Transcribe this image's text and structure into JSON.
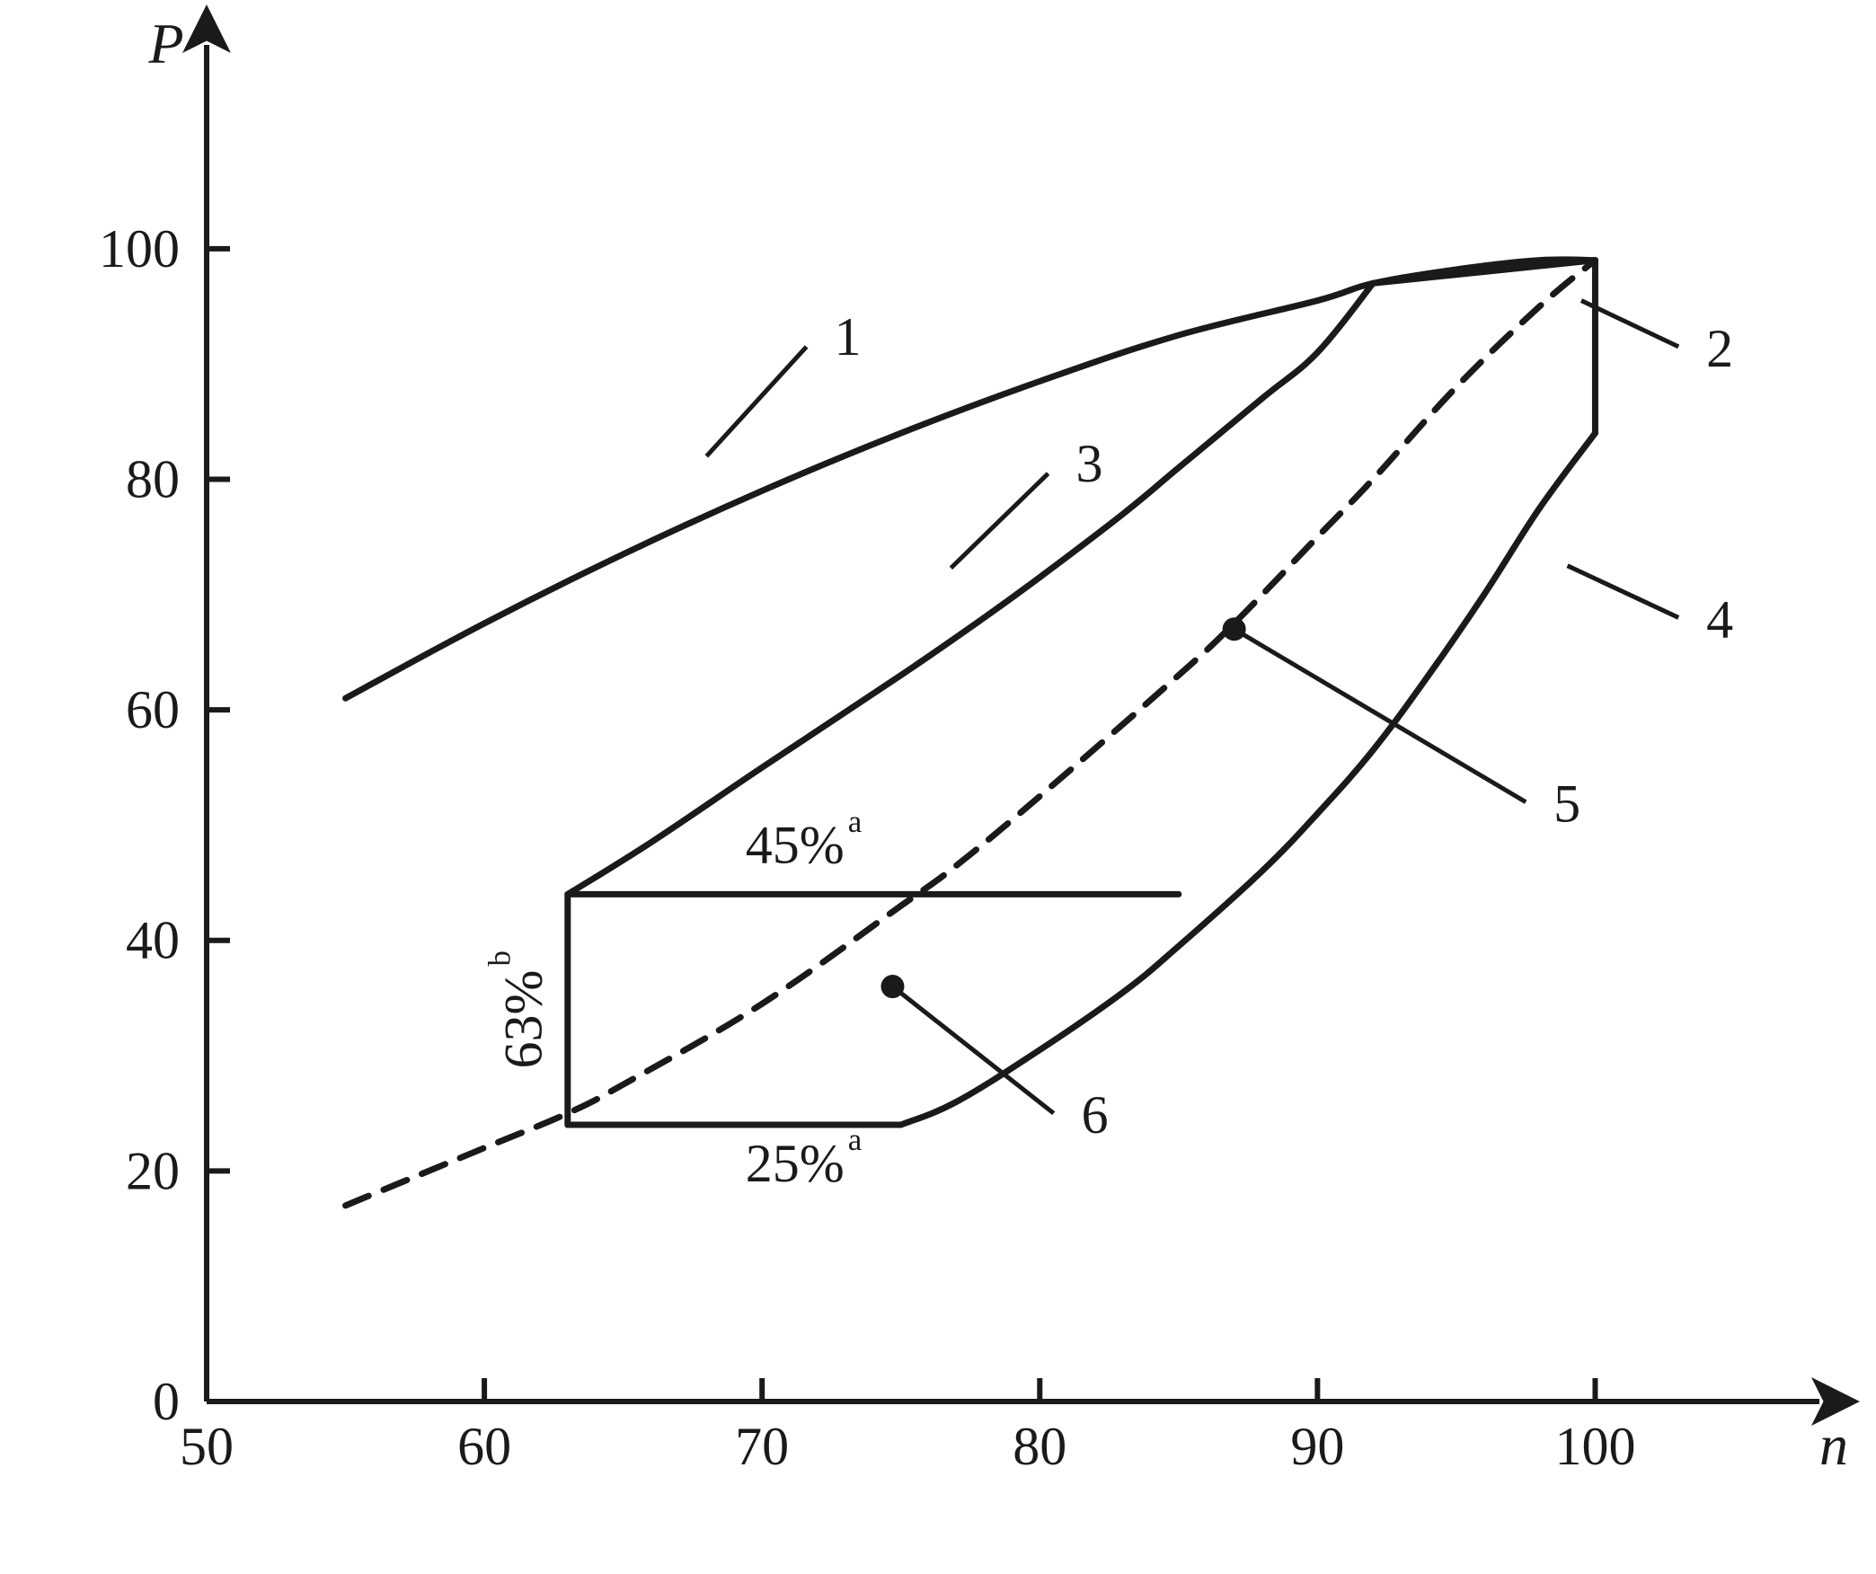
{
  "chart": {
    "type": "line-region",
    "background_color": "#ffffff",
    "stroke_color": "#1a1a1a",
    "axis_stroke_width": 6,
    "curve_stroke_width": 7,
    "font_family": "Times New Roman",
    "tick_font_size": 60,
    "axis_label_font_size": 64,
    "annotation_font_size": 60,
    "x_axis": {
      "label": "n",
      "min": 50,
      "max": 105,
      "ticks": [
        50,
        60,
        70,
        80,
        90,
        100
      ]
    },
    "y_axis": {
      "label": "P",
      "min": 0,
      "max": 113,
      "ticks": [
        0,
        20,
        40,
        60,
        80,
        100
      ]
    },
    "curves": {
      "curve1": {
        "dash": "none",
        "points": [
          [
            55,
            61
          ],
          [
            60,
            67.5
          ],
          [
            65,
            73.5
          ],
          [
            70,
            79
          ],
          [
            75,
            84
          ],
          [
            80,
            88.5
          ],
          [
            85,
            92.5
          ],
          [
            90,
            95.5
          ],
          [
            92,
            97
          ],
          [
            95,
            98.2
          ],
          [
            98,
            99
          ],
          [
            100,
            99
          ]
        ]
      },
      "curve2": {
        "dash": "28 18",
        "points": [
          [
            55,
            17
          ],
          [
            60,
            22
          ],
          [
            63,
            25
          ],
          [
            65,
            27.5
          ],
          [
            70,
            34.5
          ],
          [
            75,
            43
          ],
          [
            77,
            46.5
          ],
          [
            80,
            52.5
          ],
          [
            85,
            63
          ],
          [
            87,
            67.5
          ],
          [
            90,
            75
          ],
          [
            92,
            80
          ],
          [
            95,
            88
          ],
          [
            98,
            95
          ],
          [
            100,
            99
          ]
        ]
      },
      "curve3": {
        "dash": "none",
        "points": [
          [
            63,
            44
          ],
          [
            66,
            48.5
          ],
          [
            70,
            55
          ],
          [
            75,
            63
          ],
          [
            78,
            68
          ],
          [
            80,
            71.5
          ],
          [
            83,
            77
          ],
          [
            85,
            81
          ],
          [
            88,
            87
          ],
          [
            90,
            91
          ],
          [
            92,
            97
          ]
        ]
      },
      "curve4": {
        "dash": "none",
        "points": [
          [
            75,
            24
          ],
          [
            77,
            26
          ],
          [
            80,
            30.5
          ],
          [
            83,
            35.5
          ],
          [
            85,
            39.5
          ],
          [
            88,
            46
          ],
          [
            90,
            51
          ],
          [
            92,
            56.5
          ],
          [
            94,
            63
          ],
          [
            96,
            70
          ],
          [
            98,
            77.5
          ],
          [
            100,
            84
          ]
        ]
      },
      "box_top": {
        "dash": "none",
        "points": [
          [
            63,
            44
          ],
          [
            85,
            44
          ]
        ]
      },
      "box_left": {
        "dash": "none",
        "points": [
          [
            63,
            24
          ],
          [
            63,
            44
          ]
        ]
      },
      "box_bottom": {
        "dash": "none",
        "points": [
          [
            63,
            24
          ],
          [
            75,
            24
          ]
        ]
      },
      "right_edge": {
        "dash": "none",
        "points": [
          [
            100,
            84
          ],
          [
            100,
            99
          ]
        ]
      },
      "top_close": {
        "dash": "none",
        "points": [
          [
            92,
            97
          ],
          [
            100,
            99
          ]
        ]
      }
    },
    "leaders": {
      "l1": {
        "from": [
          68,
          82
        ],
        "to": [
          71.6,
          91.5
        ]
      },
      "l2": {
        "from": [
          99.5,
          95.5
        ],
        "to": [
          103,
          91.5
        ]
      },
      "l3": {
        "from": [
          76.8,
          72.3
        ],
        "to": [
          80.3,
          80.5
        ]
      },
      "l4": {
        "from": [
          99,
          72.5
        ],
        "to": [
          103,
          68
        ]
      },
      "l5": {
        "from_point": [
          87,
          67
        ],
        "to": [
          97.5,
          52
        ]
      },
      "l6": {
        "from_point": [
          74.7,
          36
        ],
        "to": [
          80.5,
          25
        ]
      }
    },
    "numbered_labels": {
      "n1": {
        "text": "1",
        "at": [
          72.6,
          92.5
        ]
      },
      "n2": {
        "text": "2",
        "at": [
          104,
          91.5
        ]
      },
      "n3": {
        "text": "3",
        "at": [
          81.3,
          81.5
        ]
      },
      "n4": {
        "text": "4",
        "at": [
          104,
          68
        ]
      },
      "n5": {
        "text": "5",
        "at": [
          98.5,
          52
        ]
      },
      "n6": {
        "text": "6",
        "at": [
          81.5,
          25
        ]
      }
    },
    "percent_labels": {
      "p45": {
        "text": "45%",
        "sup": "a",
        "at": [
          71.5,
          47.8
        ],
        "rotate": 0
      },
      "p25": {
        "text": "25%",
        "sup": "a",
        "at": [
          71.5,
          20.2
        ],
        "rotate": 0
      },
      "p63": {
        "text": "63%",
        "sup": "b",
        "at": [
          61.6,
          34
        ],
        "rotate": -90
      }
    },
    "point_radius": 13
  }
}
